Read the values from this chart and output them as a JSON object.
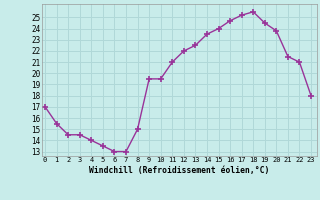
{
  "x": [
    0,
    1,
    2,
    3,
    4,
    5,
    6,
    7,
    8,
    9,
    10,
    11,
    12,
    13,
    14,
    15,
    16,
    17,
    18,
    19,
    20,
    21,
    22,
    23
  ],
  "y": [
    17,
    15.5,
    14.5,
    14.5,
    14,
    13.5,
    13,
    13,
    15,
    19.5,
    19.5,
    21,
    22,
    22.5,
    23.5,
    24,
    24.7,
    25.2,
    25.5,
    24.5,
    23.8,
    21.5,
    21,
    18
  ],
  "xlabel": "Windchill (Refroidissement éolien,°C)",
  "yticks": [
    13,
    14,
    15,
    16,
    17,
    18,
    19,
    20,
    21,
    22,
    23,
    24,
    25
  ],
  "xticks": [
    0,
    1,
    2,
    3,
    4,
    5,
    6,
    7,
    8,
    9,
    10,
    11,
    12,
    13,
    14,
    15,
    16,
    17,
    18,
    19,
    20,
    21,
    22,
    23
  ],
  "line_color": "#993399",
  "bg_color": "#c8ecea",
  "grid_color": "#b0d8d8",
  "marker": "+",
  "markersize": 4,
  "linewidth": 1.0,
  "xlim_min": -0.3,
  "xlim_max": 23.5,
  "ylim_min": 12.6,
  "ylim_max": 26.2
}
